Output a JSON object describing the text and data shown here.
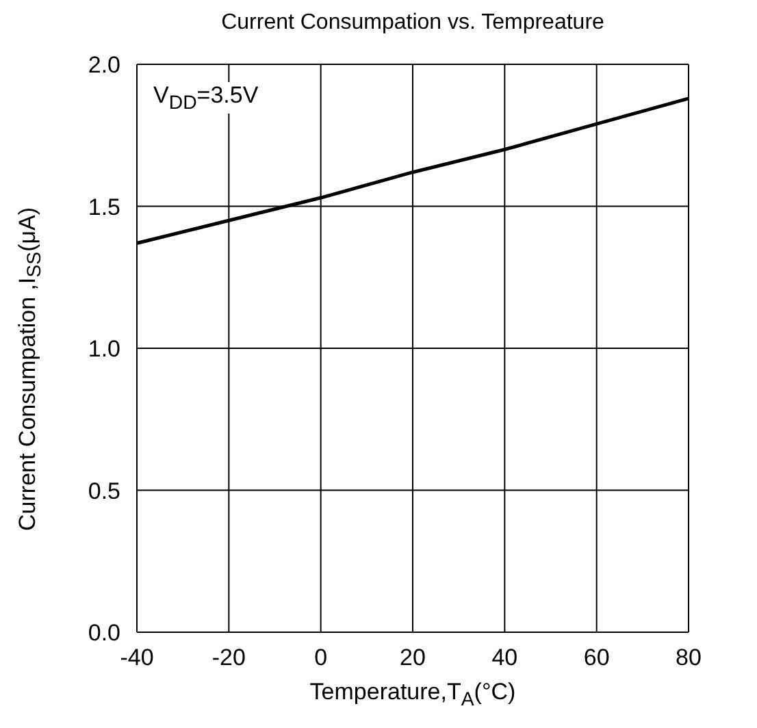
{
  "chart_data": {
    "type": "line",
    "title": "Current Consumpation vs. Tempreature",
    "xlabel": "Temperature,T$_{A}$(°C)",
    "ylabel": "Current Consumpation ,I$_{SS}$(μA)",
    "annotations": [
      "V$_{DD}$=3.5V"
    ],
    "x": [
      -40,
      -20,
      0,
      20,
      40,
      60,
      80
    ],
    "series": [
      {
        "color": "#000000",
        "values": [
          1.37,
          1.45,
          1.53,
          1.62,
          1.7,
          1.79,
          1.88
        ]
      }
    ],
    "xlim": [
      -40,
      80
    ],
    "xticks": [
      -40,
      -20,
      0,
      20,
      40,
      60,
      80
    ],
    "ylim": [
      0,
      2
    ],
    "yticks": [
      {
        "value": 0,
        "label": "0.0"
      },
      {
        "value": 0.5,
        "label": "0.5"
      },
      {
        "value": 1,
        "label": "1.0"
      },
      {
        "value": 1.5,
        "label": "1.5"
      },
      {
        "value": 2,
        "label": "2.0"
      }
    ],
    "grid": true,
    "line_style": "solid"
  }
}
